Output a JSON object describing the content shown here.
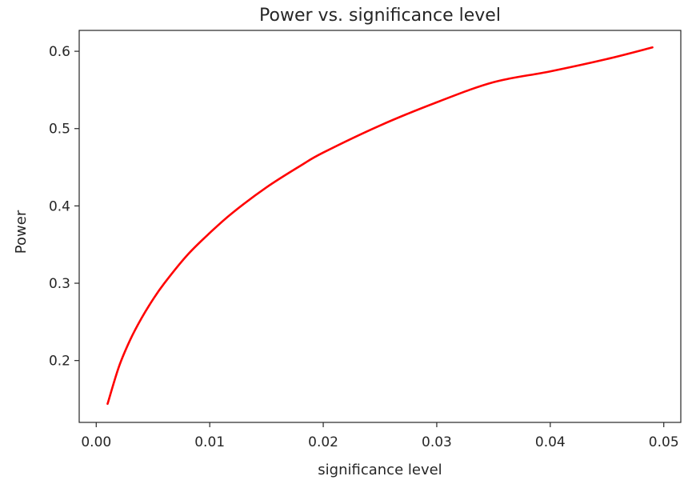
{
  "chart_data": {
    "type": "line",
    "title": "Power vs. significance level",
    "xlabel": "significance level",
    "ylabel": "Power",
    "xlim": [
      -0.0015,
      0.0515
    ],
    "ylim": [
      0.12,
      0.627
    ],
    "xticks": [
      0.0,
      0.01,
      0.02,
      0.03,
      0.04,
      0.05
    ],
    "xtick_labels": [
      "0.00",
      "0.01",
      "0.02",
      "0.03",
      "0.04",
      "0.05"
    ],
    "yticks": [
      0.2,
      0.3,
      0.4,
      0.5,
      0.6
    ],
    "ytick_labels": [
      "0.2",
      "0.3",
      "0.4",
      "0.5",
      "0.6"
    ],
    "grid": false,
    "series": [
      {
        "color": "#ff0000",
        "x": [
          0.001,
          0.002,
          0.003,
          0.004,
          0.005,
          0.006,
          0.008,
          0.01,
          0.012,
          0.015,
          0.018,
          0.02,
          0.025,
          0.03,
          0.035,
          0.04,
          0.045,
          0.049
        ],
        "y": [
          0.144,
          0.192,
          0.227,
          0.255,
          0.279,
          0.3,
          0.336,
          0.365,
          0.391,
          0.424,
          0.452,
          0.469,
          0.504,
          0.534,
          0.56,
          0.574,
          0.59,
          0.605
        ]
      }
    ]
  }
}
